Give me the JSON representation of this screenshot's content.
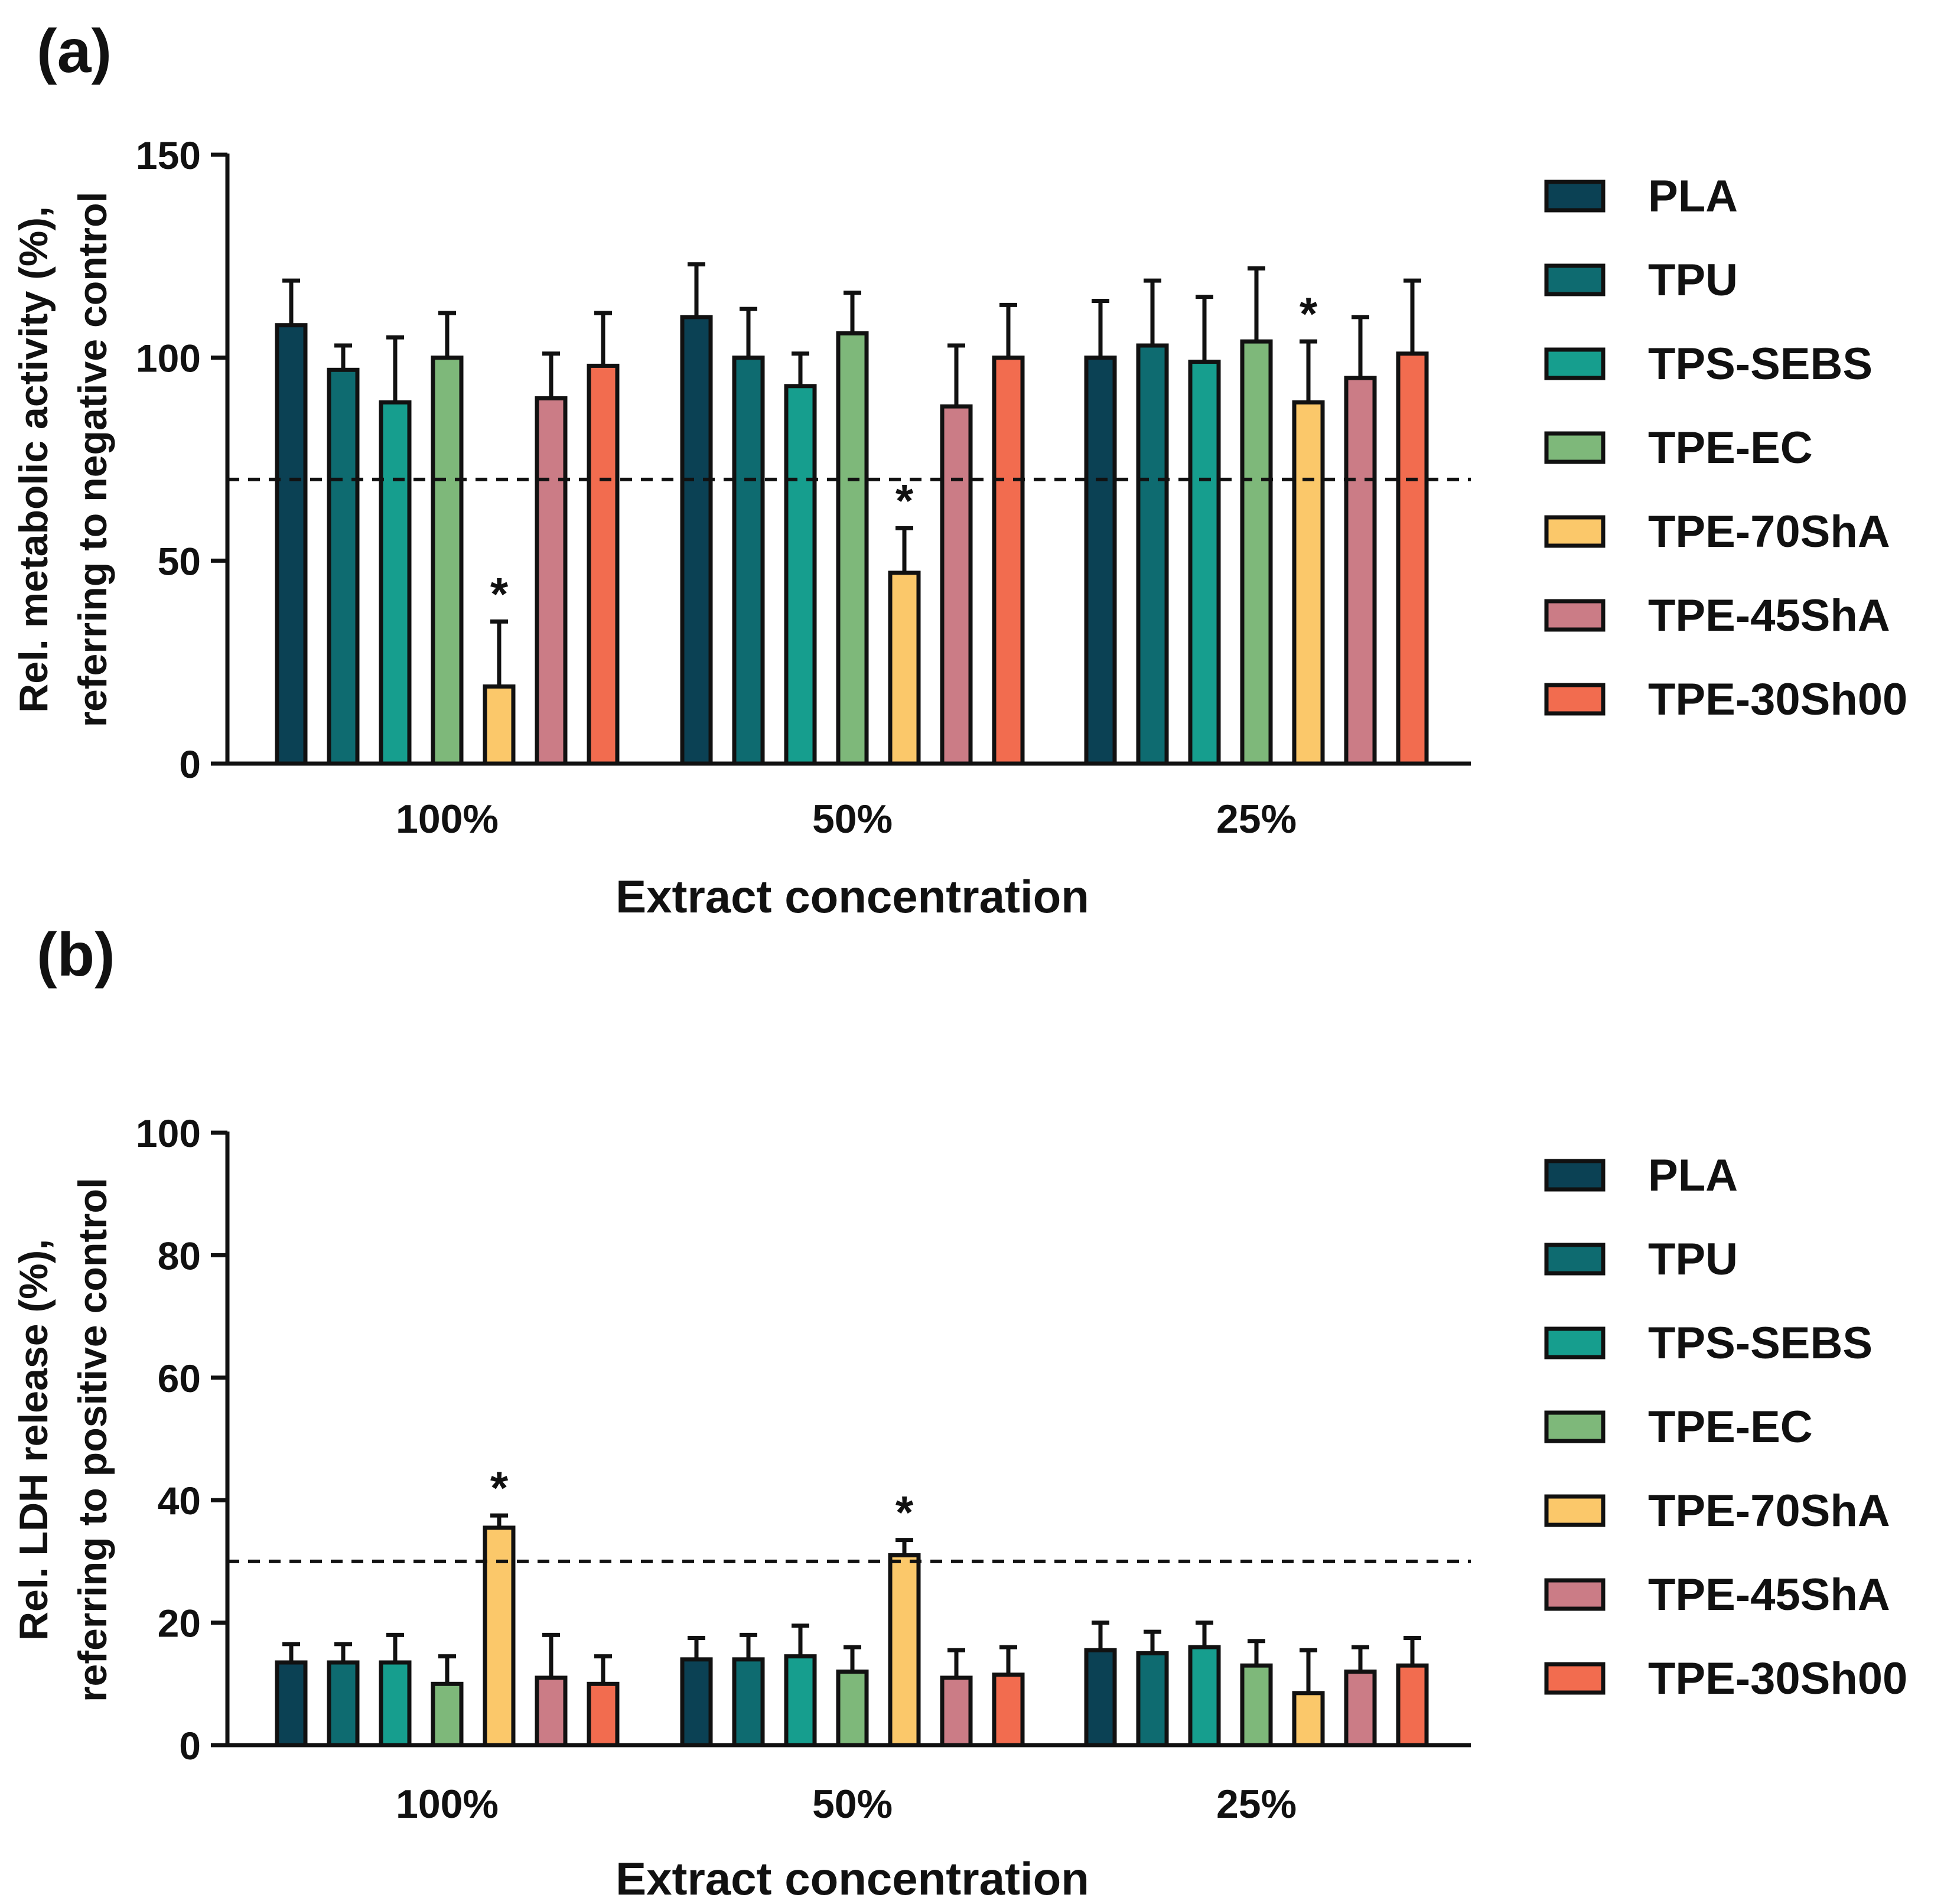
{
  "chart_data": [
    {
      "panel_label": "(a)",
      "type": "bar",
      "categories": [
        "100%",
        "50%",
        "25%"
      ],
      "xlabel": "Extract concentration",
      "ylabel_line1": "Rel. metabolic activity (%),",
      "ylabel_line2": "referring to negative control",
      "ylim": [
        0,
        150
      ],
      "yticks": [
        0,
        50,
        100,
        150
      ],
      "threshold": 70,
      "legend_position": "right",
      "series": [
        {
          "name": "PLA",
          "color": "#0b4154",
          "values": [
            108,
            110,
            100
          ],
          "errors": [
            11,
            13,
            14
          ]
        },
        {
          "name": "TPU",
          "color": "#0e6b70",
          "values": [
            97,
            100,
            103
          ],
          "errors": [
            6,
            12,
            16
          ]
        },
        {
          "name": "TPS-SEBS",
          "color": "#169e8e",
          "values": [
            89,
            93,
            99
          ],
          "errors": [
            16,
            8,
            16
          ]
        },
        {
          "name": "TPE-EC",
          "color": "#7eb87a",
          "values": [
            100,
            106,
            104
          ],
          "errors": [
            11,
            10,
            18
          ]
        },
        {
          "name": "TPE-70ShA",
          "color": "#fbc86a",
          "values": [
            19,
            47,
            89
          ],
          "errors": [
            16,
            11,
            15
          ]
        },
        {
          "name": "TPE-45ShA",
          "color": "#cb7c86",
          "values": [
            90,
            88,
            95
          ],
          "errors": [
            11,
            15,
            15
          ]
        },
        {
          "name": "TPE-30Sh00",
          "color": "#f26c4f",
          "values": [
            98,
            100,
            101
          ],
          "errors": [
            13,
            13,
            18
          ]
        }
      ],
      "significance": [
        {
          "series": "TPE-70ShA",
          "category": "100%",
          "label": "*"
        },
        {
          "series": "TPE-70ShA",
          "category": "50%",
          "label": "*"
        },
        {
          "series": "TPE-70ShA",
          "category": "25%",
          "label": "*"
        }
      ]
    },
    {
      "panel_label": "(b)",
      "type": "bar",
      "categories": [
        "100%",
        "50%",
        "25%"
      ],
      "xlabel": "Extract concentration",
      "ylabel_line1": "Rel. LDH release (%),",
      "ylabel_line2": "referring to positive control",
      "ylim": [
        0,
        100
      ],
      "yticks": [
        0,
        20,
        40,
        60,
        80,
        100
      ],
      "threshold": 30,
      "legend_position": "right",
      "series": [
        {
          "name": "PLA",
          "color": "#0b4154",
          "values": [
            13.5,
            14,
            15.5
          ],
          "errors": [
            3,
            3.5,
            4.5
          ]
        },
        {
          "name": "TPU",
          "color": "#0e6b70",
          "values": [
            13.5,
            14,
            15
          ],
          "errors": [
            3,
            4,
            3.5
          ]
        },
        {
          "name": "TPS-SEBS",
          "color": "#169e8e",
          "values": [
            13.5,
            14.5,
            16
          ],
          "errors": [
            4.5,
            5,
            4
          ]
        },
        {
          "name": "TPE-EC",
          "color": "#7eb87a",
          "values": [
            10,
            12,
            13
          ],
          "errors": [
            4.5,
            4,
            4
          ]
        },
        {
          "name": "TPE-70ShA",
          "color": "#fbc86a",
          "values": [
            35.5,
            31,
            8.5
          ],
          "errors": [
            2,
            2.5,
            7
          ]
        },
        {
          "name": "TPE-45ShA",
          "color": "#cb7c86",
          "values": [
            11,
            11,
            12
          ],
          "errors": [
            7,
            4.5,
            4
          ]
        },
        {
          "name": "TPE-30Sh00",
          "color": "#f26c4f",
          "values": [
            10,
            11.5,
            13
          ],
          "errors": [
            4.5,
            4.5,
            4.5
          ]
        }
      ],
      "significance": [
        {
          "series": "TPE-70ShA",
          "category": "100%",
          "label": "*"
        },
        {
          "series": "TPE-70ShA",
          "category": "50%",
          "label": "*"
        }
      ]
    }
  ]
}
